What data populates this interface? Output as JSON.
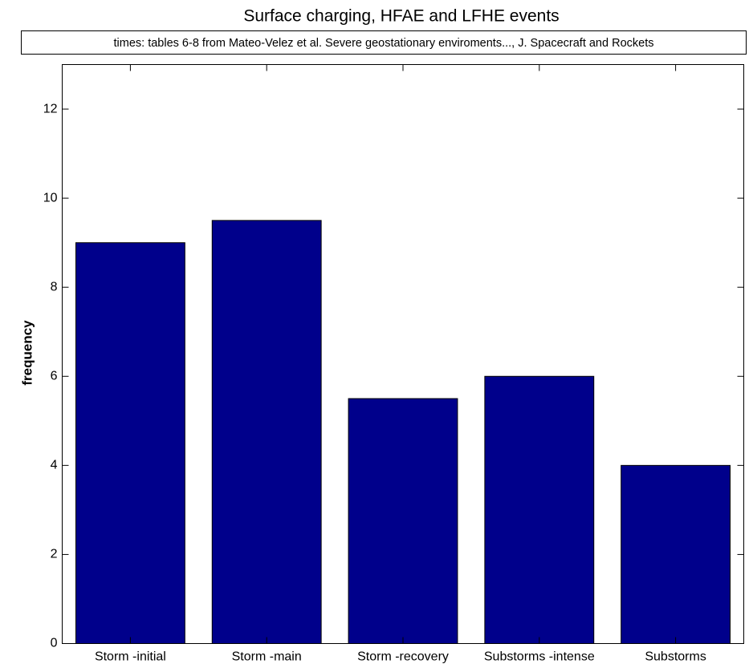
{
  "chart_data": {
    "type": "bar",
    "title": "Surface charging, HFAE and LFHE events",
    "annotation": "times: tables 6-8 from Mateo-Velez et al. Severe geostationary enviroments..., J. Spacecraft and Rockets",
    "ylabel": "frequency",
    "categories": [
      "Storm -initial",
      "Storm -main",
      "Storm -recovery",
      "Substorms -intense",
      "Substorms"
    ],
    "values": [
      9,
      9.5,
      5.5,
      6,
      4
    ],
    "color": "#00008b",
    "ylim": [
      0,
      13
    ],
    "yticks": [
      0,
      2,
      4,
      6,
      8,
      10,
      12
    ],
    "grid": false
  }
}
